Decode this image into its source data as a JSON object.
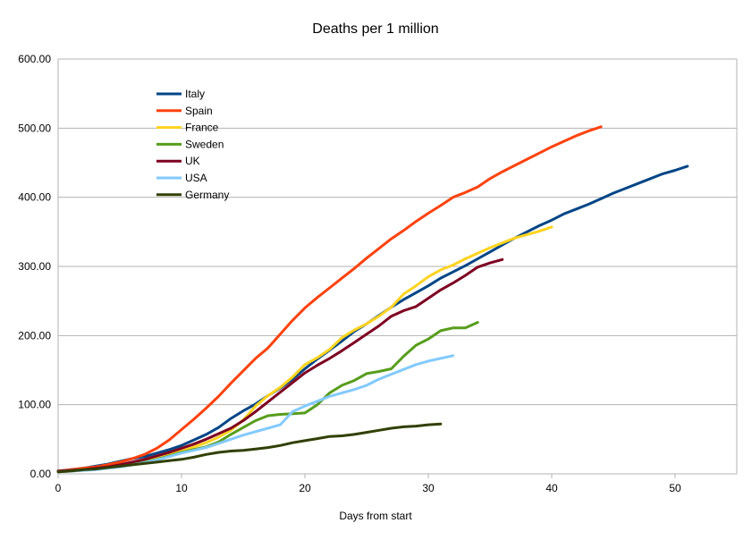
{
  "chart_data": {
    "type": "line",
    "title": "Deaths per 1 million",
    "xlabel": "Days from start",
    "ylabel": "",
    "xlim": [
      0,
      55
    ],
    "ylim": [
      0,
      600
    ],
    "x_ticks": [
      0,
      10,
      20,
      30,
      40,
      50
    ],
    "y_ticks": [
      "0.00",
      "100.00",
      "200.00",
      "300.00",
      "400.00",
      "500.00",
      "600.00"
    ],
    "grid": "horizontal",
    "legend_position": "top-left inside",
    "series": [
      {
        "name": "Italy",
        "color": "#004586",
        "points": [
          [
            0,
            4
          ],
          [
            1,
            6
          ],
          [
            2,
            8
          ],
          [
            3,
            11
          ],
          [
            4,
            14
          ],
          [
            5,
            18
          ],
          [
            6,
            22
          ],
          [
            7,
            25
          ],
          [
            8,
            30
          ],
          [
            9,
            35
          ],
          [
            10,
            41
          ],
          [
            11,
            49
          ],
          [
            12,
            57
          ],
          [
            13,
            67
          ],
          [
            14,
            80
          ],
          [
            15,
            91
          ],
          [
            16,
            101
          ],
          [
            17,
            113
          ],
          [
            18,
            124
          ],
          [
            19,
            137
          ],
          [
            20,
            152
          ],
          [
            21,
            166
          ],
          [
            22,
            179
          ],
          [
            23,
            192
          ],
          [
            24,
            206
          ],
          [
            25,
            217
          ],
          [
            26,
            229
          ],
          [
            27,
            241
          ],
          [
            28,
            252
          ],
          [
            29,
            262
          ],
          [
            30,
            272
          ],
          [
            31,
            283
          ],
          [
            32,
            292
          ],
          [
            33,
            301
          ],
          [
            34,
            311
          ],
          [
            35,
            321
          ],
          [
            36,
            331
          ],
          [
            37,
            341
          ],
          [
            38,
            350
          ],
          [
            39,
            359
          ],
          [
            40,
            367
          ],
          [
            41,
            376
          ],
          [
            42,
            383
          ],
          [
            43,
            390
          ],
          [
            44,
            398
          ],
          [
            45,
            406
          ],
          [
            46,
            413
          ],
          [
            47,
            420
          ],
          [
            48,
            427
          ],
          [
            49,
            434
          ],
          [
            50,
            439
          ],
          [
            51,
            445
          ]
        ]
      },
      {
        "name": "Spain",
        "color": "#ff420e",
        "points": [
          [
            0,
            4
          ],
          [
            1,
            6
          ],
          [
            2,
            8
          ],
          [
            3,
            10
          ],
          [
            4,
            13
          ],
          [
            5,
            17
          ],
          [
            6,
            22
          ],
          [
            7,
            28
          ],
          [
            8,
            37
          ],
          [
            9,
            49
          ],
          [
            10,
            64
          ],
          [
            11,
            79
          ],
          [
            12,
            95
          ],
          [
            13,
            112
          ],
          [
            14,
            131
          ],
          [
            15,
            149
          ],
          [
            16,
            167
          ],
          [
            17,
            182
          ],
          [
            18,
            202
          ],
          [
            19,
            222
          ],
          [
            20,
            240
          ],
          [
            21,
            255
          ],
          [
            22,
            269
          ],
          [
            23,
            283
          ],
          [
            24,
            297
          ],
          [
            25,
            312
          ],
          [
            26,
            326
          ],
          [
            27,
            340
          ],
          [
            28,
            352
          ],
          [
            29,
            365
          ],
          [
            30,
            377
          ],
          [
            31,
            388
          ],
          [
            32,
            400
          ],
          [
            33,
            407
          ],
          [
            34,
            415
          ],
          [
            35,
            427
          ],
          [
            36,
            437
          ],
          [
            37,
            446
          ],
          [
            38,
            455
          ],
          [
            39,
            464
          ],
          [
            40,
            473
          ],
          [
            41,
            481
          ],
          [
            42,
            489
          ],
          [
            43,
            496
          ],
          [
            44,
            502
          ]
        ]
      },
      {
        "name": "France",
        "color": "#ffd320",
        "points": [
          [
            0,
            4
          ],
          [
            1,
            5
          ],
          [
            2,
            6
          ],
          [
            3,
            7
          ],
          [
            4,
            9
          ],
          [
            5,
            11
          ],
          [
            6,
            14
          ],
          [
            7,
            18
          ],
          [
            8,
            23
          ],
          [
            9,
            28
          ],
          [
            10,
            33
          ],
          [
            11,
            39
          ],
          [
            12,
            45
          ],
          [
            13,
            53
          ],
          [
            14,
            63
          ],
          [
            15,
            78
          ],
          [
            16,
            98
          ],
          [
            17,
            113
          ],
          [
            18,
            125
          ],
          [
            19,
            140
          ],
          [
            20,
            158
          ],
          [
            21,
            168
          ],
          [
            22,
            180
          ],
          [
            23,
            197
          ],
          [
            24,
            208
          ],
          [
            25,
            217
          ],
          [
            26,
            228
          ],
          [
            27,
            241
          ],
          [
            28,
            260
          ],
          [
            29,
            272
          ],
          [
            30,
            285
          ],
          [
            31,
            295
          ],
          [
            32,
            302
          ],
          [
            33,
            311
          ],
          [
            34,
            319
          ],
          [
            35,
            327
          ],
          [
            36,
            334
          ],
          [
            37,
            341
          ],
          [
            38,
            346
          ],
          [
            39,
            351
          ],
          [
            40,
            357
          ]
        ]
      },
      {
        "name": "Sweden",
        "color": "#579d1c",
        "points": [
          [
            0,
            3
          ],
          [
            1,
            4
          ],
          [
            2,
            5
          ],
          [
            3,
            7
          ],
          [
            4,
            9
          ],
          [
            5,
            11
          ],
          [
            6,
            14
          ],
          [
            7,
            17
          ],
          [
            8,
            21
          ],
          [
            9,
            26
          ],
          [
            10,
            31
          ],
          [
            11,
            35
          ],
          [
            12,
            39
          ],
          [
            13,
            46
          ],
          [
            14,
            57
          ],
          [
            15,
            67
          ],
          [
            16,
            77
          ],
          [
            17,
            84
          ],
          [
            18,
            86
          ],
          [
            19,
            87
          ],
          [
            20,
            88
          ],
          [
            21,
            100
          ],
          [
            22,
            117
          ],
          [
            23,
            128
          ],
          [
            24,
            135
          ],
          [
            25,
            145
          ],
          [
            26,
            148
          ],
          [
            27,
            152
          ],
          [
            28,
            170
          ],
          [
            29,
            186
          ],
          [
            30,
            195
          ],
          [
            31,
            207
          ],
          [
            32,
            211
          ],
          [
            33,
            211
          ],
          [
            34,
            219
          ]
        ]
      },
      {
        "name": "UK",
        "color": "#7e0021",
        "points": [
          [
            0,
            4
          ],
          [
            1,
            5
          ],
          [
            2,
            6
          ],
          [
            3,
            8
          ],
          [
            4,
            10
          ],
          [
            5,
            13
          ],
          [
            6,
            17
          ],
          [
            7,
            21
          ],
          [
            8,
            26
          ],
          [
            9,
            31
          ],
          [
            10,
            37
          ],
          [
            11,
            43
          ],
          [
            12,
            50
          ],
          [
            13,
            58
          ],
          [
            14,
            66
          ],
          [
            15,
            77
          ],
          [
            16,
            90
          ],
          [
            17,
            104
          ],
          [
            18,
            118
          ],
          [
            19,
            132
          ],
          [
            20,
            146
          ],
          [
            21,
            157
          ],
          [
            22,
            167
          ],
          [
            23,
            178
          ],
          [
            24,
            190
          ],
          [
            25,
            202
          ],
          [
            26,
            214
          ],
          [
            27,
            228
          ],
          [
            28,
            236
          ],
          [
            29,
            242
          ],
          [
            30,
            254
          ],
          [
            31,
            266
          ],
          [
            32,
            276
          ],
          [
            33,
            287
          ],
          [
            34,
            299
          ],
          [
            35,
            305
          ],
          [
            36,
            310
          ]
        ]
      },
      {
        "name": "USA",
        "color": "#83caff",
        "points": [
          [
            0,
            3
          ],
          [
            1,
            4
          ],
          [
            2,
            5
          ],
          [
            3,
            6
          ],
          [
            4,
            8
          ],
          [
            5,
            10
          ],
          [
            6,
            13
          ],
          [
            7,
            16
          ],
          [
            8,
            20
          ],
          [
            9,
            25
          ],
          [
            10,
            30
          ],
          [
            11,
            34
          ],
          [
            12,
            38
          ],
          [
            13,
            44
          ],
          [
            14,
            50
          ],
          [
            15,
            56
          ],
          [
            16,
            61
          ],
          [
            17,
            66
          ],
          [
            18,
            71
          ],
          [
            19,
            90
          ],
          [
            20,
            98
          ],
          [
            21,
            105
          ],
          [
            22,
            112
          ],
          [
            23,
            117
          ],
          [
            24,
            122
          ],
          [
            25,
            128
          ],
          [
            26,
            137
          ],
          [
            27,
            144
          ],
          [
            28,
            151
          ],
          [
            29,
            158
          ],
          [
            30,
            163
          ],
          [
            31,
            167
          ],
          [
            32,
            171
          ]
        ]
      },
      {
        "name": "Germany",
        "color": "#314004",
        "points": [
          [
            0,
            3
          ],
          [
            1,
            4
          ],
          [
            2,
            6
          ],
          [
            3,
            7
          ],
          [
            4,
            9
          ],
          [
            5,
            11
          ],
          [
            6,
            13
          ],
          [
            7,
            15
          ],
          [
            8,
            17
          ],
          [
            9,
            19
          ],
          [
            10,
            21
          ],
          [
            11,
            24
          ],
          [
            12,
            28
          ],
          [
            13,
            31
          ],
          [
            14,
            33
          ],
          [
            15,
            34
          ],
          [
            16,
            36
          ],
          [
            17,
            38
          ],
          [
            18,
            41
          ],
          [
            19,
            45
          ],
          [
            20,
            48
          ],
          [
            21,
            51
          ],
          [
            22,
            54
          ],
          [
            23,
            55
          ],
          [
            24,
            57
          ],
          [
            25,
            60
          ],
          [
            26,
            63
          ],
          [
            27,
            66
          ],
          [
            28,
            68
          ],
          [
            29,
            69
          ],
          [
            30,
            71
          ],
          [
            31,
            72
          ]
        ]
      }
    ]
  }
}
